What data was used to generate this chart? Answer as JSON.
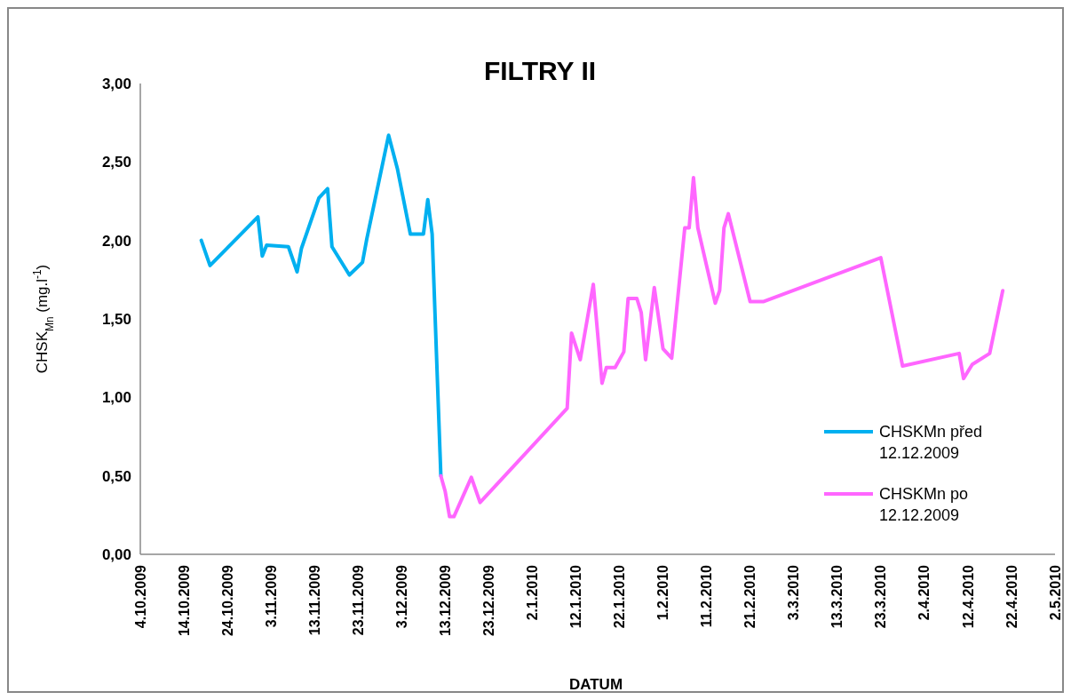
{
  "chart_data": {
    "type": "line",
    "title": "FILTRY II",
    "xlabel": "DATUM",
    "ylabel": "CHSK$_{Mn}$ (mg.l$^{-1}$)",
    "xlim": [
      "2009-10-04",
      "2010-05-02"
    ],
    "xticks": [
      {
        "value": "2009-10-04",
        "label": "4.10.2009"
      },
      {
        "value": "2009-10-14",
        "label": "14.10.2009"
      },
      {
        "value": "2009-10-24",
        "label": "24.10.2009"
      },
      {
        "value": "2009-11-03",
        "label": "3.11.2009"
      },
      {
        "value": "2009-11-13",
        "label": "13.11.2009"
      },
      {
        "value": "2009-11-23",
        "label": "23.11.2009"
      },
      {
        "value": "2009-12-03",
        "label": "3.12.2009"
      },
      {
        "value": "2009-12-13",
        "label": "13.12.2009"
      },
      {
        "value": "2009-12-23",
        "label": "23.12.2009"
      },
      {
        "value": "2010-01-02",
        "label": "2.1.2010"
      },
      {
        "value": "2010-01-12",
        "label": "12.1.2010"
      },
      {
        "value": "2010-01-22",
        "label": "22.1.2010"
      },
      {
        "value": "2010-02-01",
        "label": "1.2.2010"
      },
      {
        "value": "2010-02-11",
        "label": "11.2.2010"
      },
      {
        "value": "2010-02-21",
        "label": "21.2.2010"
      },
      {
        "value": "2010-03-03",
        "label": "3.3.2010"
      },
      {
        "value": "2010-03-13",
        "label": "13.3.2010"
      },
      {
        "value": "2010-03-23",
        "label": "23.3.2010"
      },
      {
        "value": "2010-04-02",
        "label": "2.4.2010"
      },
      {
        "value": "2010-04-12",
        "label": "12.4.2010"
      },
      {
        "value": "2010-04-22",
        "label": "22.4.2010"
      },
      {
        "value": "2010-05-02",
        "label": "2.5.2010"
      }
    ],
    "ylim": [
      0,
      3
    ],
    "yticks": [
      {
        "value": 0,
        "label": "0,00"
      },
      {
        "value": 0.5,
        "label": "0,50"
      },
      {
        "value": 1,
        "label": "1,00"
      },
      {
        "value": 1.5,
        "label": "1,50"
      },
      {
        "value": 2,
        "label": "2,00"
      },
      {
        "value": 2.5,
        "label": "2,50"
      },
      {
        "value": 3,
        "label": "3,00"
      }
    ],
    "grid": false,
    "legend": "bottom right",
    "marker": "none",
    "line_style": "solid",
    "series": [
      {
        "name": "CHSKMn před 12.12.2009",
        "color": "#00b0f0",
        "x": [
          "2009-10-18",
          "2009-10-20",
          "2009-10-31",
          "2009-11-01",
          "2009-11-02",
          "2009-11-07",
          "2009-11-09",
          "2009-11-10",
          "2009-11-14",
          "2009-11-16",
          "2009-11-17",
          "2009-11-21",
          "2009-11-24",
          "2009-11-25",
          "2009-11-30",
          "2009-12-02",
          "2009-12-05",
          "2009-12-08",
          "2009-12-09",
          "2009-12-10",
          "2009-12-12"
        ],
        "values": [
          2.0,
          1.84,
          2.15,
          1.9,
          1.97,
          1.96,
          1.8,
          1.95,
          2.27,
          2.33,
          1.96,
          1.78,
          1.86,
          2.01,
          2.67,
          2.46,
          2.04,
          2.04,
          2.26,
          2.04,
          0.5
        ]
      },
      {
        "name": "CHSKMn po 12.12.2009",
        "color": "#ff66ff",
        "x": [
          "2009-12-12",
          "2009-12-13",
          "2009-12-14",
          "2009-12-15",
          "2009-12-19",
          "2009-12-21",
          "2010-01-10",
          "2010-01-11",
          "2010-01-13",
          "2010-01-16",
          "2010-01-18",
          "2010-01-19",
          "2010-01-21",
          "2010-01-23",
          "2010-01-24",
          "2010-01-26",
          "2010-01-27",
          "2010-01-28",
          "2010-01-30",
          "2010-02-01",
          "2010-02-03",
          "2010-02-06",
          "2010-02-07",
          "2010-02-08",
          "2010-02-09",
          "2010-02-13",
          "2010-02-14",
          "2010-02-15",
          "2010-02-16",
          "2010-02-21",
          "2010-02-24",
          "2010-03-23",
          "2010-03-28",
          "2010-04-10",
          "2010-04-11",
          "2010-04-13",
          "2010-04-17",
          "2010-04-20"
        ],
        "values": [
          0.5,
          0.4,
          0.24,
          0.24,
          0.49,
          0.33,
          0.93,
          1.41,
          1.24,
          1.72,
          1.09,
          1.19,
          1.19,
          1.29,
          1.63,
          1.63,
          1.54,
          1.24,
          1.7,
          1.31,
          1.25,
          2.08,
          2.08,
          2.4,
          2.08,
          1.6,
          1.68,
          2.08,
          2.17,
          1.61,
          1.61,
          1.89,
          1.2,
          1.28,
          1.12,
          1.21,
          1.28,
          1.68
        ]
      }
    ]
  }
}
